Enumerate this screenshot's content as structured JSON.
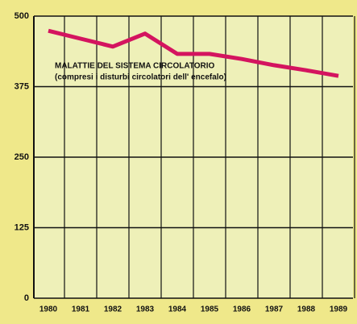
{
  "chart_data": {
    "type": "line",
    "annotations": [
      "MALATTIE DEL SISTEMA CIRCOLATORIO",
      "(compresi i disturbi circolatori dell' encefalo)"
    ],
    "categories": [
      "1980",
      "1981",
      "1982",
      "1983",
      "1984",
      "1985",
      "1986",
      "1987",
      "1988",
      "1989"
    ],
    "series": [
      {
        "color": "#d4145f",
        "values": [
          474,
          460,
          446,
          469,
          433,
          433,
          424,
          413,
          404,
          394
        ]
      }
    ],
    "ylim": [
      0,
      500
    ],
    "yticks": [
      0,
      125,
      250,
      375,
      500
    ],
    "grid": true
  }
}
